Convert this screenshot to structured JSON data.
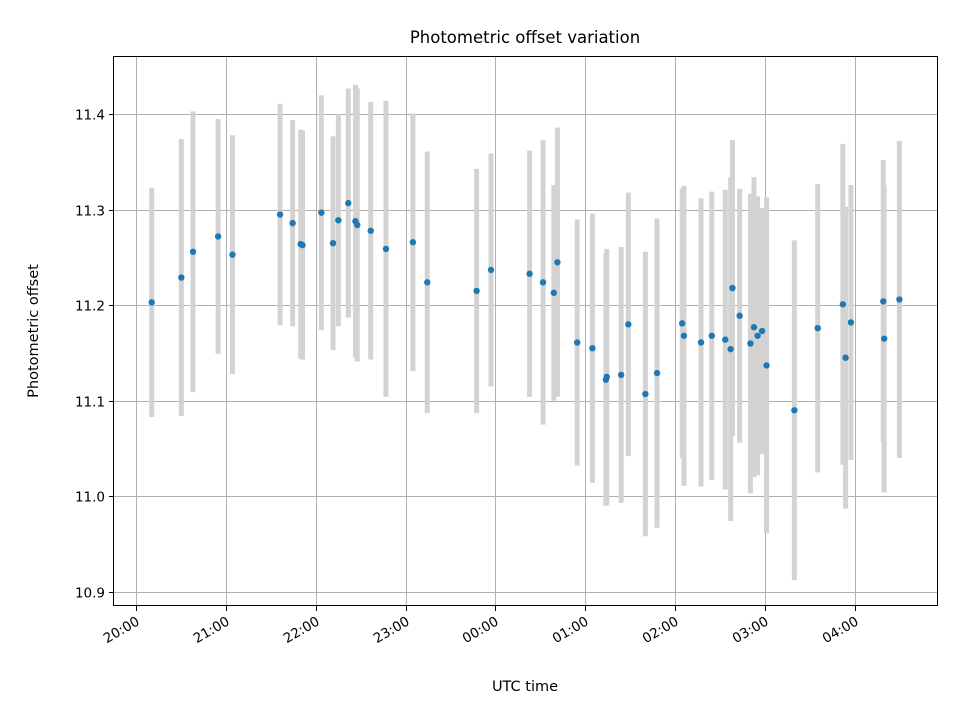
{
  "chart_data": {
    "type": "scatter",
    "title": "Photometric offset variation",
    "xlabel": "UTC time",
    "ylabel": "Photometric offset",
    "x_ticks": [
      "20:00",
      "21:00",
      "22:00",
      "23:00",
      "00:00",
      "01:00",
      "02:00",
      "03:00",
      "04:00"
    ],
    "x_tick_hours": [
      20,
      21,
      22,
      23,
      24,
      25,
      26,
      27,
      28
    ],
    "xlim_hours": [
      19.75,
      28.93
    ],
    "y_ticks": [
      "10.9",
      "11.0",
      "11.1",
      "11.2",
      "11.3",
      "11.4"
    ],
    "y_tick_values": [
      10.9,
      11.0,
      11.1,
      11.2,
      11.3,
      11.4
    ],
    "ylim": [
      10.885,
      11.46
    ],
    "grid": true,
    "point_color": "#1f77b4",
    "errorbar_color": "#d3d3d3",
    "series": [
      {
        "x": [
          20.17,
          20.5,
          20.63,
          20.91,
          21.07,
          21.6,
          21.74,
          21.83,
          21.85,
          22.06,
          22.19,
          22.25,
          22.36,
          22.44,
          22.46,
          22.61,
          22.78,
          23.08,
          23.24,
          23.79,
          23.95,
          24.38,
          24.53,
          24.65,
          24.69,
          24.91,
          25.08,
          25.23,
          25.24,
          25.4,
          25.48,
          25.67,
          25.8,
          26.08,
          26.1,
          26.29,
          26.41,
          26.56,
          26.62,
          26.64,
          26.72,
          26.84,
          26.88,
          26.92,
          26.97,
          27.02,
          27.33,
          27.59,
          27.87,
          27.9,
          27.96,
          28.32,
          28.33,
          28.5
        ],
        "y": [
          11.203,
          11.229,
          11.256,
          11.272,
          11.253,
          11.295,
          11.286,
          11.264,
          11.263,
          11.297,
          11.265,
          11.289,
          11.307,
          11.288,
          11.284,
          11.278,
          11.259,
          11.266,
          11.224,
          11.215,
          11.237,
          11.233,
          11.224,
          11.213,
          11.245,
          11.161,
          11.155,
          11.122,
          11.125,
          11.127,
          11.18,
          11.107,
          11.129,
          11.181,
          11.168,
          11.161,
          11.168,
          11.164,
          11.154,
          11.218,
          11.189,
          11.16,
          11.177,
          11.168,
          11.173,
          11.137,
          11.09,
          11.176,
          11.201,
          11.145,
          11.182,
          11.204,
          11.165,
          11.206
        ],
        "yerr": [
          0.12,
          0.145,
          0.147,
          0.123,
          0.125,
          0.116,
          0.108,
          0.12,
          0.12,
          0.123,
          0.112,
          0.111,
          0.12,
          0.143,
          0.143,
          0.135,
          0.155,
          0.135,
          0.137,
          0.128,
          0.122,
          0.129,
          0.149,
          0.113,
          0.141,
          0.129,
          0.141,
          0.132,
          0.134,
          0.134,
          0.138,
          0.149,
          0.162,
          0.141,
          0.157,
          0.151,
          0.151,
          0.157,
          0.18,
          0.155,
          0.133,
          0.157,
          0.157,
          0.146,
          0.129,
          0.176,
          0.178,
          0.151,
          0.168,
          0.158,
          0.144,
          0.148,
          0.161,
          0.166
        ]
      }
    ]
  }
}
